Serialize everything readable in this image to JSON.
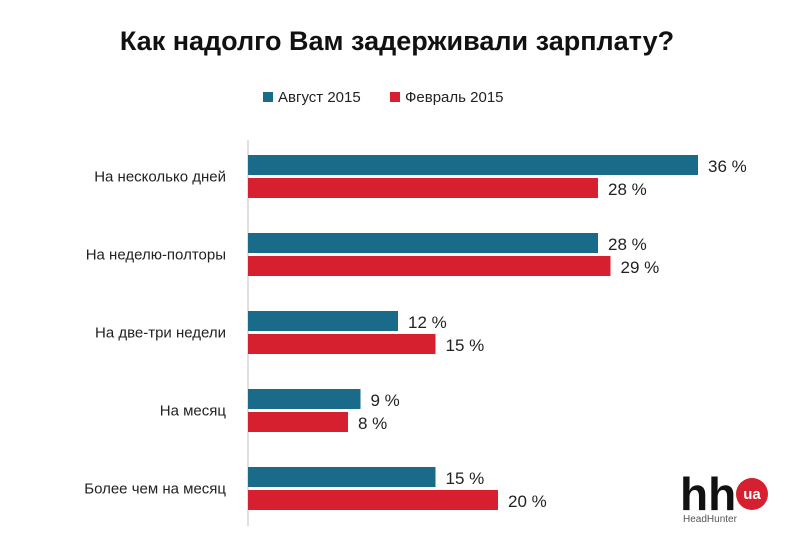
{
  "chart_data": {
    "type": "bar",
    "orientation": "horizontal",
    "title": "Как надолго Вам задерживали зарплату?",
    "categories": [
      "На несколько дней",
      "На неделю-полторы",
      "На две-три недели",
      "На месяц",
      "Более чем на месяц"
    ],
    "series": [
      {
        "name": "Август 2015",
        "color": "#1a6b8a",
        "values": [
          36,
          28,
          12,
          9,
          15
        ]
      },
      {
        "name": "Февраль 2015",
        "color": "#d7202f",
        "values": [
          28,
          29,
          15,
          8,
          20
        ]
      }
    ],
    "value_suffix": " %",
    "xlim": [
      0,
      40
    ],
    "legend_position": "top-center",
    "grid": false
  },
  "logo": {
    "main": "hh",
    "badge": "ua",
    "sub": "HeadHunter",
    "badge_color": "#d7202f"
  }
}
